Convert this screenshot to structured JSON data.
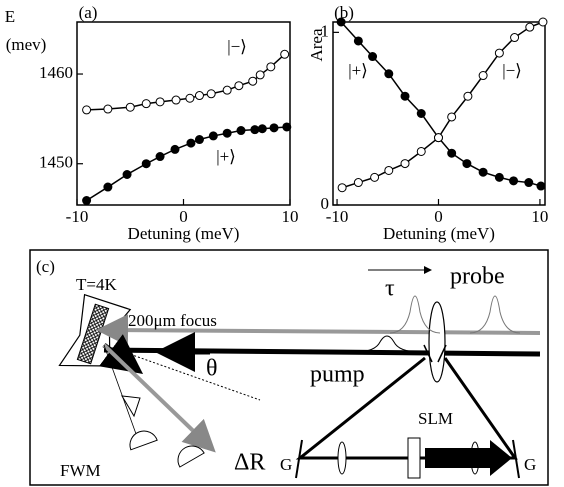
{
  "chart_data": [
    {
      "type": "line",
      "panel": "(a)",
      "ylabel": [
        "E",
        "(mev)"
      ],
      "xlabel": "Detuning (meV)",
      "xlim": [
        -10,
        10
      ],
      "xticks": [
        -10,
        0,
        10
      ],
      "ylim": [
        1445.4,
        1465.8
      ],
      "yticks": [
        1450,
        1460
      ],
      "series": [
        {
          "name": "|−⟩",
          "fill": "#ffffff",
          "color": "#000000",
          "x": [
            -9.1,
            -7.1,
            -5.0,
            -3.5,
            -2.2,
            -0.7,
            0.6,
            1.5,
            2.6,
            4.1,
            5.2,
            6.5,
            7.2,
            8.2,
            9.5
          ],
          "values": [
            1456.0,
            1456.1,
            1456.3,
            1456.7,
            1456.9,
            1457.1,
            1457.3,
            1457.6,
            1457.8,
            1458.2,
            1458.7,
            1459.2,
            1459.9,
            1460.8,
            1462.2
          ]
        },
        {
          "name": "|+⟩",
          "fill": "#000000",
          "color": "#000000",
          "x": [
            -9.1,
            -7.1,
            -5.3,
            -3.5,
            -2.2,
            -0.8,
            0.7,
            1.5,
            2.8,
            4.1,
            5.4,
            6.7,
            7.4,
            8.5,
            9.7
          ],
          "values": [
            1445.9,
            1447.4,
            1448.8,
            1450.0,
            1450.8,
            1451.6,
            1452.3,
            1452.7,
            1453.1,
            1453.4,
            1453.7,
            1453.8,
            1453.9,
            1454.0,
            1454.1
          ]
        }
      ]
    },
    {
      "type": "line",
      "panel": "(b)",
      "ylabel": [
        "Area"
      ],
      "xlabel": "Detuning (meV)",
      "xlim": [
        -10.4,
        10.5
      ],
      "xticks": [
        -10,
        0,
        10
      ],
      "ylim": [
        0,
        1.06
      ],
      "yticks": [
        0,
        1
      ],
      "series": [
        {
          "name": "|+⟩",
          "fill": "#000000",
          "color": "#000000",
          "x": [
            -9.6,
            -7.9,
            -6.5,
            -4.9,
            -3.3,
            -1.7,
            0,
            1.3,
            2.8,
            4.4,
            6.0,
            7.4,
            8.9,
            10.1
          ],
          "values": [
            1.06,
            0.95,
            0.86,
            0.76,
            0.63,
            0.53,
            0.39,
            0.3,
            0.24,
            0.19,
            0.16,
            0.14,
            0.13,
            0.11
          ]
        },
        {
          "name": "|−⟩",
          "fill": "#ffffff",
          "color": "#000000",
          "x": [
            -9.5,
            -7.9,
            -6.3,
            -4.9,
            -3.3,
            -1.7,
            0,
            1.3,
            2.9,
            4.4,
            6.0,
            7.5,
            9.0,
            10.3
          ],
          "values": [
            0.1,
            0.13,
            0.16,
            0.2,
            0.24,
            0.31,
            0.39,
            0.51,
            0.63,
            0.75,
            0.88,
            0.97,
            1.03,
            1.06
          ]
        }
      ]
    }
  ],
  "diagram": {
    "panel": "(c)",
    "temperature": "T=4K",
    "focus": "200μm focus",
    "delay": "τ",
    "probe": "probe",
    "angle": "θ",
    "pump": "pump",
    "slm": "SLM",
    "grating_left": "G",
    "grating_right": "G",
    "fwm": "FWM",
    "reflect": "ΔR"
  }
}
